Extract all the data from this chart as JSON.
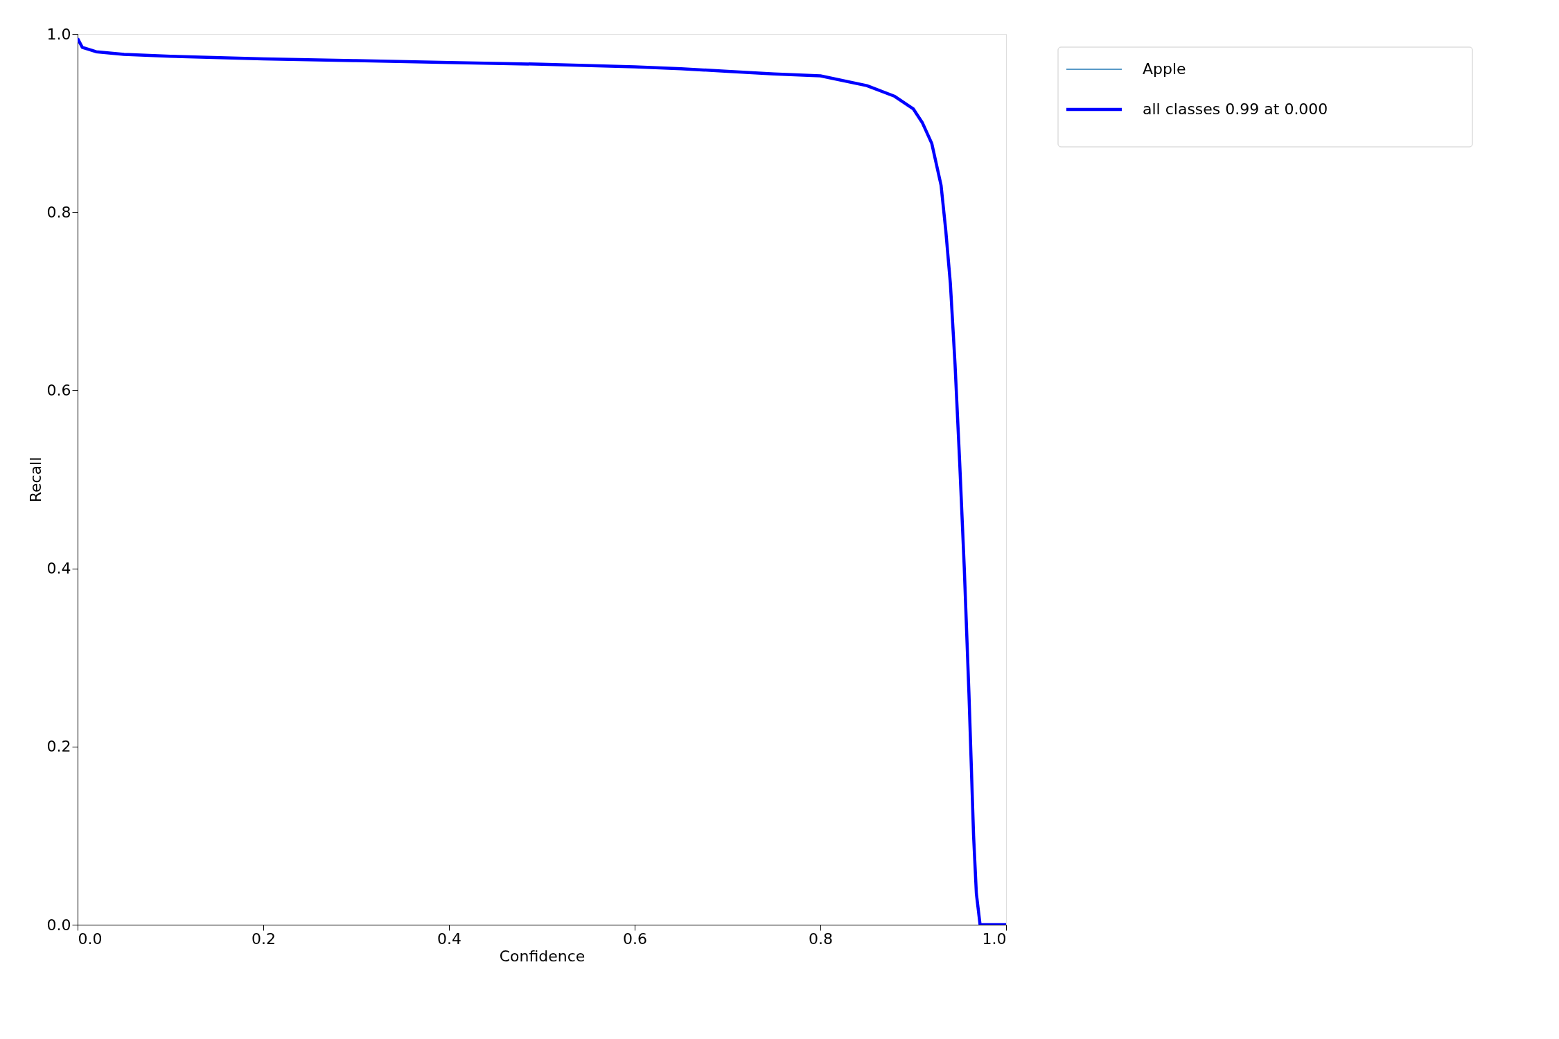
{
  "chart_data": {
    "type": "line",
    "xlabel": "Confidence",
    "ylabel": "Recall",
    "x": [
      0,
      0.005,
      0.02,
      0.05,
      0.1,
      0.2,
      0.3,
      0.4,
      0.5,
      0.6,
      0.65,
      0.7,
      0.75,
      0.8,
      0.85,
      0.88,
      0.9,
      0.91,
      0.92,
      0.93,
      0.935,
      0.94,
      0.945,
      0.95,
      0.955,
      0.96,
      0.965,
      0.968,
      0.972,
      1.0
    ],
    "series": [
      {
        "name": "Apple",
        "color": "#1f77b4",
        "values": [
          null,
          null,
          null,
          null,
          null,
          null,
          null,
          null,
          null,
          null,
          null,
          null,
          null,
          null,
          null,
          null,
          null,
          null,
          null,
          null,
          null,
          null,
          null,
          null,
          null,
          null,
          null,
          null,
          null,
          null
        ]
      },
      {
        "name": "all classes 0.99 at 0.000",
        "color": "#0000ff",
        "values": [
          0.995,
          0.985,
          0.98,
          0.977,
          0.975,
          0.972,
          0.97,
          0.968,
          0.966,
          0.963,
          0.961,
          0.958,
          0.955,
          0.953,
          0.942,
          0.93,
          0.916,
          0.9,
          0.877,
          0.83,
          0.78,
          0.72,
          0.63,
          0.52,
          0.4,
          0.26,
          0.1,
          0.035,
          0.0,
          0.0
        ]
      }
    ],
    "xlim": [
      0,
      1
    ],
    "ylim": [
      0,
      1
    ],
    "xticks": [
      {
        "value": 0,
        "label": "0.0"
      },
      {
        "value": 0.2,
        "label": "0.2"
      },
      {
        "value": 0.4,
        "label": "0.4"
      },
      {
        "value": 0.6,
        "label": "0.6"
      },
      {
        "value": 0.8,
        "label": "0.8"
      },
      {
        "value": 1,
        "label": "1.0"
      }
    ],
    "yticks": [
      {
        "value": 0,
        "label": "0.0"
      },
      {
        "value": 0.2,
        "label": "0.2"
      },
      {
        "value": 0.4,
        "label": "0.4"
      },
      {
        "value": 0.6,
        "label": "0.6"
      },
      {
        "value": 0.8,
        "label": "0.8"
      },
      {
        "value": 1,
        "label": "1.0"
      }
    ],
    "grid": false,
    "legend": "top right",
    "marker": "none",
    "line_style": "solid"
  }
}
